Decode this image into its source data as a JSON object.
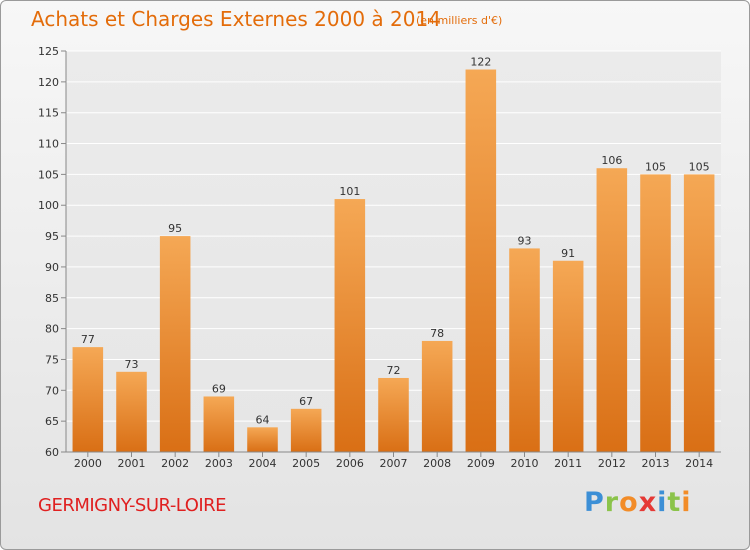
{
  "chart_data": {
    "type": "bar",
    "title": "Achats et Charges Externes 2000 à 2014",
    "subtitle": "(en milliers d'€)",
    "categories": [
      "2000",
      "2001",
      "2002",
      "2003",
      "2004",
      "2005",
      "2006",
      "2007",
      "2008",
      "2009",
      "2010",
      "2011",
      "2012",
      "2013",
      "2014"
    ],
    "values": [
      77,
      73,
      95,
      69,
      64,
      67,
      101,
      72,
      78,
      122,
      93,
      91,
      106,
      105,
      105
    ],
    "ylim": [
      60,
      125
    ],
    "yticks": [
      60,
      65,
      70,
      75,
      80,
      85,
      90,
      95,
      100,
      105,
      110,
      115,
      120,
      125
    ],
    "grid": true,
    "colors": {
      "bar_top": "#f5a855",
      "bar_bottom": "#d96f15",
      "title": "#e36c0a",
      "commune": "#e02020"
    }
  },
  "footer": {
    "commune": "GERMIGNY-SUR-LOIRE",
    "logo_letters": [
      {
        "char": "P",
        "color": "#3c8fd6"
      },
      {
        "char": "r",
        "color": "#8bc34a"
      },
      {
        "char": "o",
        "color": "#f28c28"
      },
      {
        "char": "x",
        "color": "#e53935"
      },
      {
        "char": "i",
        "color": "#3c8fd6"
      },
      {
        "char": "t",
        "color": "#8bc34a"
      },
      {
        "char": "i",
        "color": "#f28c28"
      }
    ]
  }
}
